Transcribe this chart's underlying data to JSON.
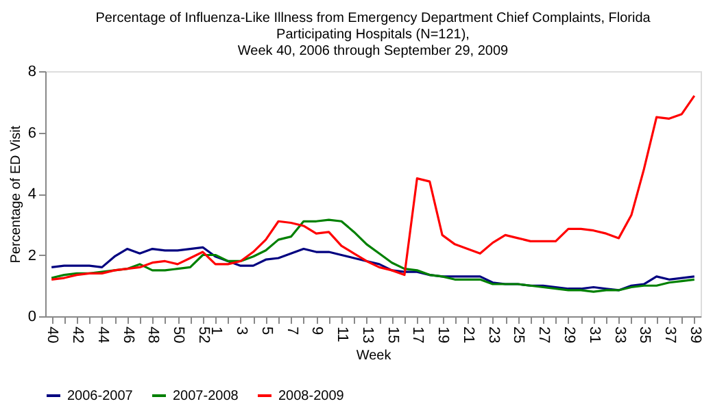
{
  "chart_data": {
    "type": "line",
    "title": "Percentage of Influenza-Like Illness from Emergency Department Chief Complaints, Florida\nParticipating Hospitals (N=121),\nWeek 40, 2006 through September 29, 2009",
    "xlabel": "Week",
    "ylabel": "Percentage of ED Visit",
    "categories": [
      "40",
      null,
      "42",
      null,
      "44",
      null,
      "46",
      null,
      "48",
      null,
      "50",
      null,
      "52",
      "1",
      null,
      "3",
      null,
      "5",
      null,
      "7",
      null,
      "9",
      null,
      "11",
      null,
      "13",
      null,
      "15",
      null,
      "17",
      null,
      "19",
      null,
      "21",
      null,
      "23",
      null,
      "25",
      null,
      "27",
      null,
      "29",
      null,
      "31",
      null,
      "33",
      null,
      "35",
      null,
      "37",
      null,
      "39"
    ],
    "series": [
      {
        "name": "2006-2007",
        "color": "#000080",
        "values": [
          1.6,
          1.65,
          1.65,
          1.65,
          1.6,
          1.95,
          2.2,
          2.05,
          2.2,
          2.15,
          2.15,
          2.2,
          2.25,
          1.95,
          1.8,
          1.65,
          1.65,
          1.85,
          1.9,
          2.05,
          2.2,
          2.1,
          2.1,
          2.0,
          1.9,
          1.8,
          1.7,
          1.5,
          1.45,
          1.45,
          1.35,
          1.3,
          1.3,
          1.3,
          1.3,
          1.1,
          1.05,
          1.05,
          1.0,
          1.0,
          0.95,
          0.9,
          0.9,
          0.95,
          0.9,
          0.85,
          1.0,
          1.05,
          1.3,
          1.2,
          1.25,
          1.3
        ]
      },
      {
        "name": "2007-2008",
        "color": "#008000",
        "values": [
          1.25,
          1.35,
          1.4,
          1.4,
          1.45,
          1.5,
          1.55,
          1.7,
          1.5,
          1.5,
          1.55,
          1.6,
          2.0,
          2.0,
          1.8,
          1.8,
          1.95,
          2.15,
          2.5,
          2.6,
          3.1,
          3.1,
          3.15,
          3.1,
          2.75,
          2.35,
          2.05,
          1.75,
          1.55,
          1.5,
          1.35,
          1.3,
          1.2,
          1.2,
          1.2,
          1.05,
          1.05,
          1.05,
          1.0,
          0.95,
          0.9,
          0.85,
          0.85,
          0.8,
          0.85,
          0.85,
          0.95,
          1.0,
          1.0,
          1.1,
          1.15,
          1.2
        ]
      },
      {
        "name": "2008-2009",
        "color": "#ff0000",
        "values": [
          1.2,
          1.25,
          1.35,
          1.4,
          1.4,
          1.5,
          1.55,
          1.6,
          1.75,
          1.8,
          1.7,
          1.9,
          2.1,
          1.7,
          1.7,
          1.8,
          2.1,
          2.5,
          3.1,
          3.05,
          2.95,
          2.7,
          2.75,
          2.3,
          2.05,
          1.8,
          1.6,
          1.5,
          1.35,
          4.5,
          4.4,
          2.65,
          2.35,
          2.2,
          2.05,
          2.4,
          2.65,
          2.55,
          2.45,
          2.45,
          2.45,
          2.85,
          2.85,
          2.8,
          2.7,
          2.55,
          3.3,
          4.8,
          6.5,
          6.45,
          6.6,
          7.2
        ]
      }
    ],
    "ylim": [
      0,
      8
    ],
    "yticks": [
      0,
      2,
      4,
      6,
      8
    ],
    "grid": false,
    "legend": "bottom",
    "marker": "none",
    "line_style": "solid"
  }
}
